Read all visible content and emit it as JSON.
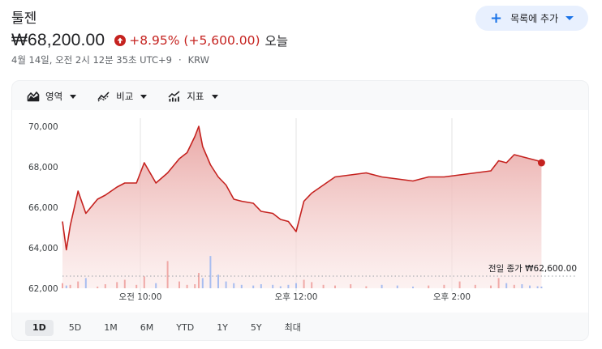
{
  "header": {
    "title": "툴젠",
    "watchlist_button": "목록에 추가"
  },
  "quote": {
    "price": "₩68,200.00",
    "change": "+8.95% (+5,600.00)",
    "period": "오늘",
    "timestamp": "4월 14일, 오전 2시 12분 35초 UTC+9",
    "currency": "KRW"
  },
  "toolbar": {
    "area": "영역",
    "compare": "비교",
    "indicators": "지표"
  },
  "ranges": [
    "1D",
    "5D",
    "1M",
    "6M",
    "YTD",
    "1Y",
    "5Y",
    "최대"
  ],
  "active_range": "1D",
  "colors": {
    "line": "#c5221f",
    "fill_top": "#e8a3a1",
    "up": "#c5221f",
    "accent": "#1a73e8"
  },
  "chart_data": {
    "type": "area",
    "yticks": [
      "70,000",
      "68,000",
      "66,000",
      "64,000",
      "62,000"
    ],
    "xticks": [
      "오전 10:00",
      "오후 12:00",
      "오후 2:00"
    ],
    "ylim": [
      62000,
      70400
    ],
    "prev_close_label": "전일 종가 ₩62,600.00",
    "prev_close": 62600,
    "x_hours": [
      9.0,
      9.05,
      9.1,
      9.2,
      9.3,
      9.45,
      9.55,
      9.7,
      9.8,
      9.95,
      10.05,
      10.2,
      10.35,
      10.5,
      10.6,
      10.7,
      10.75,
      10.8,
      10.9,
      11.0,
      11.1,
      11.2,
      11.3,
      11.45,
      11.55,
      11.7,
      11.8,
      11.9,
      12.0,
      12.1,
      12.2,
      12.35,
      12.5,
      12.7,
      12.9,
      13.1,
      13.3,
      13.5,
      13.7,
      13.9,
      14.1,
      14.3,
      14.5,
      14.6,
      14.7,
      14.8,
      14.9,
      15.0,
      15.1,
      15.15
    ],
    "values": [
      65300,
      63900,
      65100,
      66800,
      65700,
      66400,
      66600,
      67000,
      67200,
      67200,
      68200,
      67200,
      67700,
      68400,
      68700,
      69500,
      70000,
      69000,
      68100,
      67500,
      67100,
      66400,
      66300,
      66200,
      65800,
      65700,
      65400,
      65300,
      64800,
      66300,
      66700,
      67100,
      67500,
      67600,
      67700,
      67500,
      67400,
      67300,
      67500,
      67500,
      67600,
      67700,
      67800,
      68300,
      68200,
      68600,
      68500,
      68400,
      68300,
      68200
    ],
    "volume": [
      0.15,
      0.08,
      0.1,
      0.2,
      0.3,
      0.05,
      0.12,
      0.18,
      0.25,
      0.1,
      0.35,
      0.15,
      0.8,
      0.2,
      0.1,
      0.12,
      0.45,
      0.3,
      0.95,
      0.4,
      0.2,
      0.15,
      0.1,
      0.08,
      0.12,
      0.1,
      0.06,
      0.1,
      0.15,
      0.25,
      0.18,
      0.1,
      0.08,
      0.12,
      0.06,
      0.1,
      0.08,
      0.05,
      0.08,
      0.1,
      0.2,
      0.1,
      0.08,
      0.3,
      0.15,
      0.1,
      0.12,
      0.08,
      0.06,
      0.05
    ]
  }
}
